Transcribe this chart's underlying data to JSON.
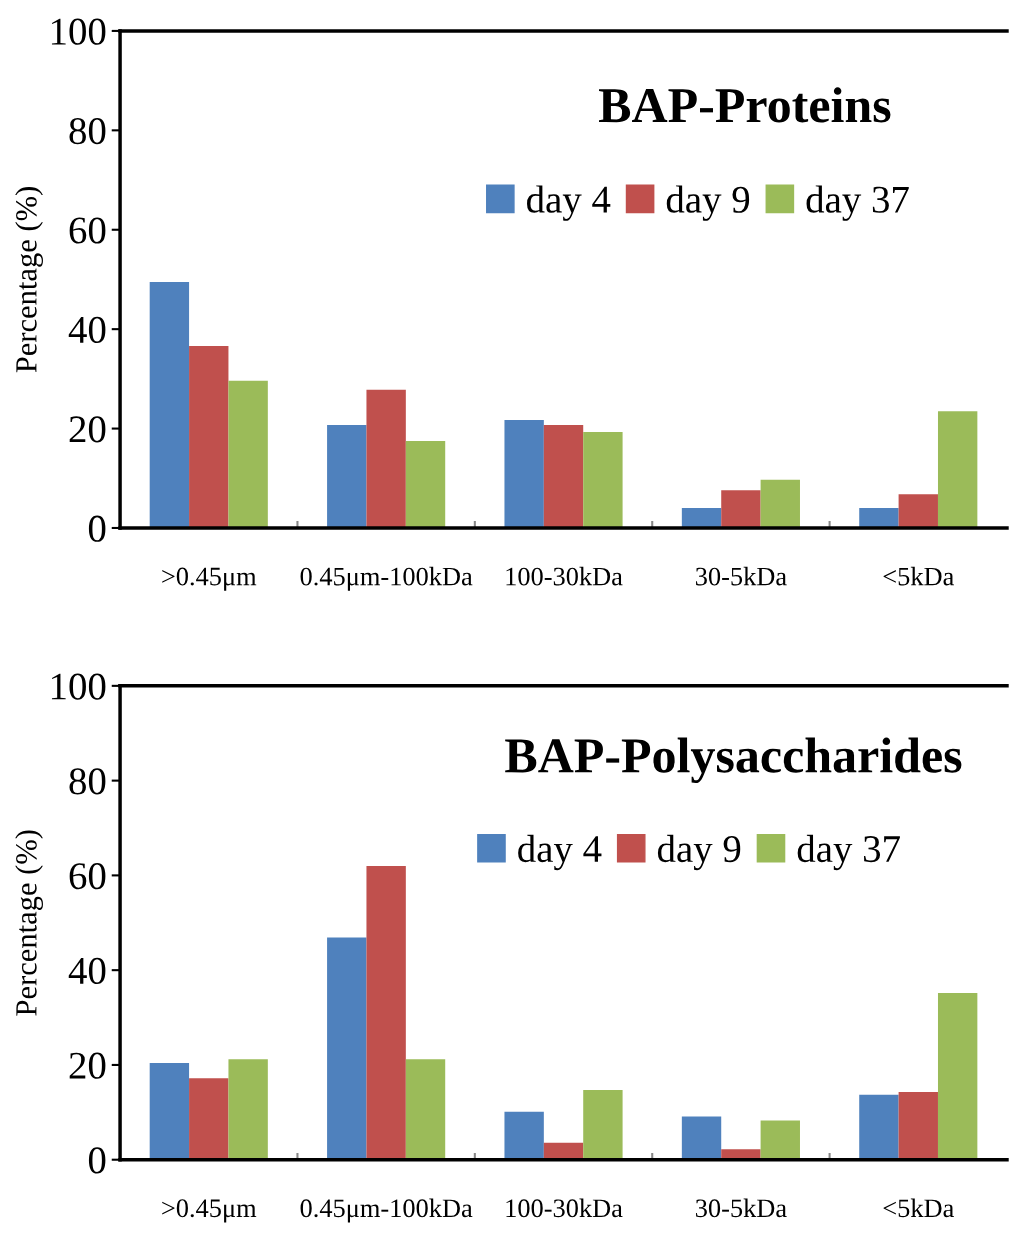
{
  "chart_data": [
    {
      "type": "bar",
      "title": "BAP-Proteins",
      "ylabel": "Percentage (%)",
      "categories": [
        ">0.45μm",
        "0.45μm-100kDa",
        "100-30kDa",
        "30-5kDa",
        "<5kDa"
      ],
      "series": [
        {
          "name": "day 4",
          "color": "#4f81bd",
          "values": [
            49.5,
            20.7,
            21.7,
            4.0,
            4.0
          ]
        },
        {
          "name": "day 9",
          "color": "#c0504d",
          "values": [
            36.6,
            27.8,
            20.7,
            7.6,
            6.8
          ]
        },
        {
          "name": "day 37",
          "color": "#9bbb59",
          "values": [
            29.6,
            17.5,
            19.3,
            9.7,
            23.5
          ]
        }
      ],
      "ylim": [
        0,
        100
      ],
      "yticks": [
        0,
        20,
        40,
        60,
        80,
        100
      ],
      "grid": false,
      "legend": "top right"
    },
    {
      "type": "bar",
      "title": "BAP-Polysaccharides",
      "ylabel": "Percentage (%)",
      "categories": [
        ">0.45μm",
        "0.45μm-100kDa",
        "100-30kDa",
        "30-5kDa",
        "<5kDa"
      ],
      "series": [
        {
          "name": "day 4",
          "color": "#4f81bd",
          "values": [
            20.4,
            46.9,
            10.1,
            9.1,
            13.7
          ]
        },
        {
          "name": "day 9",
          "color": "#c0504d",
          "values": [
            17.2,
            62.0,
            3.6,
            2.2,
            14.3
          ]
        },
        {
          "name": "day 37",
          "color": "#9bbb59",
          "values": [
            21.2,
            21.2,
            14.7,
            8.3,
            35.2
          ]
        }
      ],
      "ylim": [
        0,
        100
      ],
      "yticks": [
        0,
        20,
        40,
        60,
        80,
        100
      ],
      "grid": false,
      "legend": "top right"
    }
  ]
}
